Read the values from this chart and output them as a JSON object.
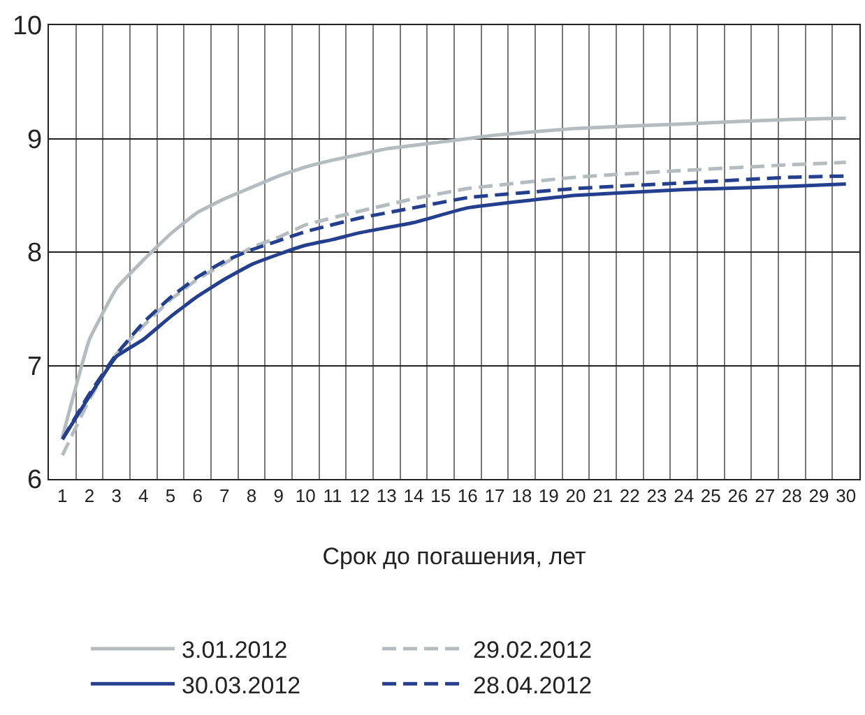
{
  "chart_data": {
    "type": "line",
    "xlabel": "Срок до погашения, лет",
    "xlim": [
      0.5,
      30.5
    ],
    "xticks": [
      1,
      2,
      3,
      4,
      5,
      6,
      7,
      8,
      9,
      10,
      11,
      12,
      13,
      14,
      15,
      16,
      17,
      18,
      19,
      20,
      21,
      22,
      23,
      24,
      25,
      26,
      27,
      28,
      29,
      30
    ],
    "ylim": [
      6,
      10
    ],
    "yticks": [
      6,
      7,
      8,
      9,
      10
    ],
    "grid": true,
    "legend": "bottom",
    "marker": "none",
    "series": [
      {
        "name": "3.01.2012",
        "color": "#b4bcc0",
        "line_style": "solid",
        "x": [
          1,
          2,
          3,
          4,
          5,
          6,
          7,
          8,
          9,
          10,
          11,
          12,
          13,
          14,
          15,
          16,
          17,
          20,
          24,
          28,
          30
        ],
        "values": [
          6.37,
          7.23,
          7.68,
          7.93,
          8.16,
          8.35,
          8.47,
          8.57,
          8.67,
          8.75,
          8.81,
          8.86,
          8.91,
          8.94,
          8.97,
          9.0,
          9.03,
          9.09,
          9.13,
          9.17,
          9.18
        ]
      },
      {
        "name": "29.02.2012",
        "color": "#b4bcc0",
        "line_style": "dashed",
        "x": [
          1,
          2,
          3,
          4,
          5,
          6,
          7,
          8,
          9,
          10,
          12,
          14,
          16,
          20,
          24,
          28,
          30
        ],
        "values": [
          6.21,
          6.7,
          7.1,
          7.35,
          7.58,
          7.76,
          7.9,
          8.04,
          8.13,
          8.24,
          8.36,
          8.47,
          8.56,
          8.66,
          8.72,
          8.77,
          8.79
        ]
      },
      {
        "name": "30.03.2012",
        "color": "#253f8f",
        "line_style": "solid",
        "x": [
          1,
          2,
          3,
          4,
          5,
          6,
          7,
          8,
          9,
          10,
          11,
          12,
          14,
          16,
          20,
          24,
          28,
          30
        ],
        "values": [
          6.35,
          6.73,
          7.08,
          7.23,
          7.43,
          7.61,
          7.76,
          7.89,
          7.98,
          8.06,
          8.11,
          8.17,
          8.26,
          8.39,
          8.5,
          8.55,
          8.58,
          8.6
        ]
      },
      {
        "name": "28.04.2012",
        "color": "#253f8f",
        "line_style": "dashed",
        "x": [
          1,
          2,
          3,
          4,
          5,
          6,
          7,
          8,
          9,
          10,
          12,
          14,
          16,
          20,
          24,
          28,
          30
        ],
        "values": [
          6.35,
          6.75,
          7.1,
          7.38,
          7.6,
          7.78,
          7.92,
          8.02,
          8.1,
          8.18,
          8.3,
          8.39,
          8.48,
          8.56,
          8.61,
          8.66,
          8.67
        ]
      }
    ]
  }
}
